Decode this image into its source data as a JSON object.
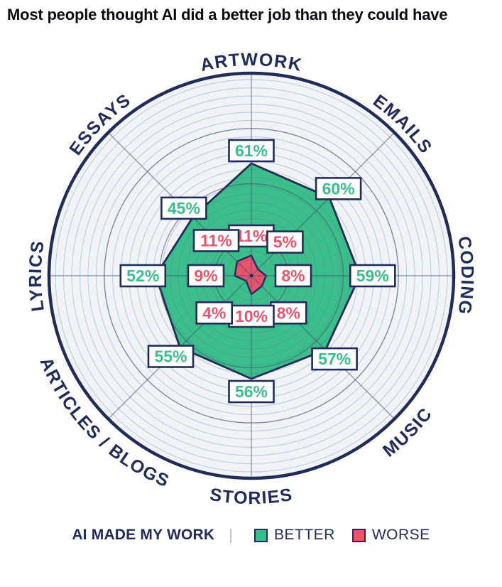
{
  "title": "Most people thought AI did a better job than they could have",
  "chart_data": {
    "type": "radar",
    "categories": [
      "ARTWORK",
      "EMAILS",
      "CODING",
      "MUSIC",
      "STORIES",
      "ARTICLES / BLOGS",
      "LYRICS",
      "ESSAYS"
    ],
    "axis_order": "clockwise-from-top",
    "series": [
      {
        "name": "BETTER",
        "color": "#3CBD8C",
        "values": [
          61,
          60,
          59,
          57,
          56,
          55,
          52,
          45
        ]
      },
      {
        "name": "WORSE",
        "color": "#E8546E",
        "values": [
          11,
          5,
          8,
          8,
          10,
          4,
          9,
          11
        ]
      }
    ],
    "value_suffix": "%",
    "rings": {
      "major_percents": [
        20,
        50,
        80
      ],
      "outer_ring_percent": 110,
      "minor_grid": true
    },
    "legend_position": "bottom"
  },
  "legend": {
    "prefix": "AI MADE MY WORK",
    "divider": "|",
    "items": [
      {
        "label": "BETTER",
        "color": "#3CBD8C"
      },
      {
        "label": "WORSE",
        "color": "#E8546E"
      }
    ]
  },
  "colors": {
    "navy": "#222C58",
    "green": "#3CBD8C",
    "red": "#E8546E",
    "minor_grid": "#CBE2F2",
    "chart_bg": "#F2F3F6",
    "grid_dark": "rgba(70,80,110,0.55)",
    "label_box_bg": "#FFFFFF",
    "title_color": "#0B0B14"
  }
}
